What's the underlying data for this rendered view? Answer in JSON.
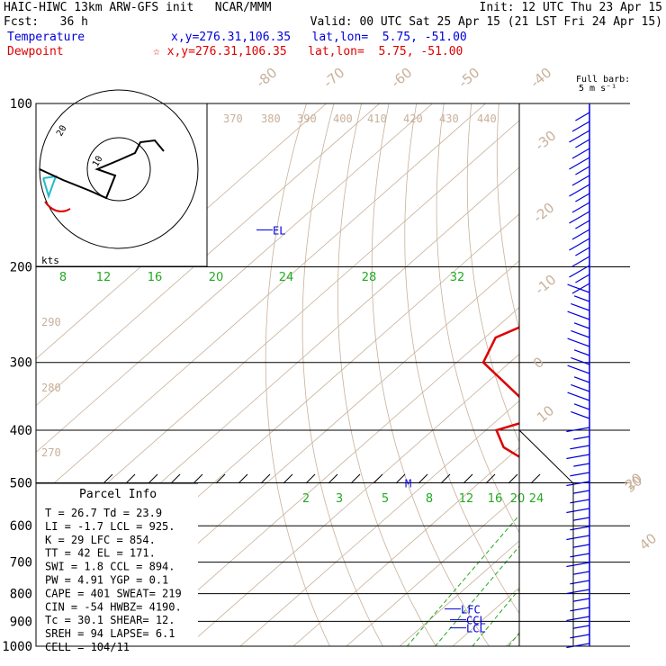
{
  "header": {
    "left_line1": "HAIC-HIWC 13km ARW-GFS init   NCAR/MMM",
    "left_line2": "Fcst:   36 h",
    "right_line1": "Init: 12 UTC Thu 23 Apr 15",
    "right_line2": "Valid: 00 UTC Sat 25 Apr 15 (21 LST Fri 24 Apr 15)",
    "temp_label": "Temperature",
    "temp_info": "x,y=276.31,106.35   lat,lon=  5.75, -51.00",
    "dew_label": "Dewpoint",
    "dew_info": "☆ x,y=276.31,106.35   lat,lon=  5.75, -51.00",
    "barb_note_1": "Full barb:",
    "barb_note_2": "5 m s⁻¹"
  },
  "colors": {
    "temperature": "#0000dd",
    "dewpoint": "#dd0000",
    "theta": "#c8b09a",
    "mixing": "#22aa22",
    "isobar": "#000000",
    "hodo_cyan": "#22bbcc"
  },
  "chart_data": {
    "type": "line",
    "title": "Skew-T log-P sounding",
    "xlabel": "",
    "ylabel": "",
    "pressure_levels": [
      100,
      200,
      300,
      400,
      500,
      600,
      700,
      800,
      900,
      1000
    ],
    "skewed_isotherm_labels": [
      "-80",
      "-70",
      "-60",
      "-50",
      "-40",
      "-30",
      "-20",
      "-10",
      "0",
      "10",
      "20",
      "30",
      "40"
    ],
    "theta_labels": [
      "370",
      "380",
      "390",
      "400",
      "410",
      "420",
      "430",
      "440",
      "290",
      "280",
      "270"
    ],
    "mixing_ratio_labels_upper": [
      "8",
      "12",
      "16",
      "20",
      "24",
      "28",
      "32"
    ],
    "mixing_ratio_labels_lower": [
      "2",
      "3",
      "5",
      "8",
      "12",
      "16",
      "20",
      "24"
    ],
    "series": [
      {
        "name": "Temperature",
        "points": [
          [
            1000,
            26.7
          ],
          [
            980,
            25.3
          ],
          [
            950,
            23.0
          ],
          [
            925,
            21.4
          ],
          [
            900,
            20.5
          ],
          [
            875,
            19.4
          ],
          [
            850,
            18.5
          ],
          [
            800,
            16.2
          ],
          [
            700,
            11.0
          ],
          [
            600,
            5.0
          ],
          [
            500,
            -2.0
          ],
          [
            480,
            -3.0
          ],
          [
            400,
            -9.0
          ],
          [
            300,
            -24.0
          ],
          [
            250,
            -35.0
          ],
          [
            200,
            -48.0
          ],
          [
            170,
            -56.0
          ],
          [
            150,
            -62.0
          ],
          [
            125,
            -70.0
          ],
          [
            110,
            -74.0
          ],
          [
            100,
            -74.0
          ]
        ]
      },
      {
        "name": "Dewpoint",
        "points": [
          [
            1000,
            23.9
          ],
          [
            980,
            24.0
          ],
          [
            950,
            20.0
          ],
          [
            925,
            19.5
          ],
          [
            900,
            18.0
          ],
          [
            850,
            15.0
          ],
          [
            800,
            11.0
          ],
          [
            700,
            4.0
          ],
          [
            600,
            -3.0
          ],
          [
            550,
            -8.0
          ],
          [
            500,
            -18.0
          ],
          [
            470,
            -22.0
          ],
          [
            430,
            -33.0
          ],
          [
            400,
            -38.0
          ],
          [
            380,
            -33.0
          ],
          [
            350,
            -40.0
          ],
          [
            300,
            -55.0
          ],
          [
            270,
            -58.0
          ],
          [
            250,
            -54.0
          ],
          [
            220,
            -60.0
          ],
          [
            200,
            -68.0
          ],
          [
            180,
            -71.0
          ],
          [
            160,
            -72.0
          ],
          [
            140,
            -75.0
          ],
          [
            120,
            -78.0
          ],
          [
            110,
            -78.0
          ],
          [
            100,
            -78.0
          ]
        ]
      }
    ],
    "level_annotations": [
      {
        "label": "EL",
        "pressure": 171
      },
      {
        "label": "M",
        "pressure": 500
      },
      {
        "label": "LFC",
        "pressure": 854
      },
      {
        "label": "CCL",
        "pressure": 894
      },
      {
        "label": "LCL",
        "pressure": 925
      }
    ]
  },
  "hodograph": {
    "label": "kts",
    "ring_labels": [
      "10",
      "20"
    ]
  },
  "parcel_info": {
    "title": "Parcel Info",
    "rows": [
      "T  =   26.7 Td =  23.9",
      "LI =   -1.7 LCL =  925.",
      "K  =     29 LFC =  854.",
      "TT =     42 EL  =  171.",
      "SWI =   1.8 CCL =  894.",
      "PW =   4.91 YGP =   0.1",
      "CAPE =  401 SWEAT=  219",
      "CIN =   -54 HWBZ= 4190.",
      "Tc =   30.1 SHEAR=  12.",
      "SREH =   94 LAPSE=  6.1",
      "CELL = 104/11"
    ]
  }
}
